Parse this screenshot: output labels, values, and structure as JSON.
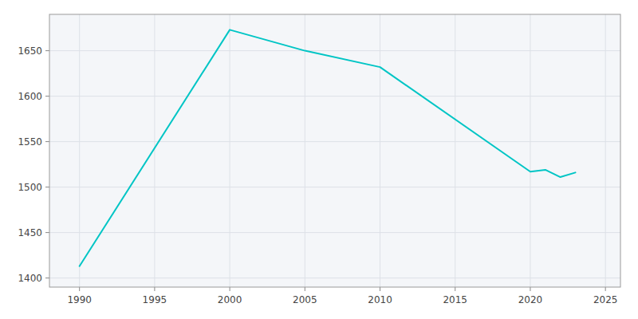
{
  "chart_data": {
    "type": "line",
    "x": [
      1990,
      2000,
      2005,
      2010,
      2020,
      2021,
      2022,
      2023
    ],
    "values": [
      1413,
      1673,
      1650,
      1632,
      1517,
      1519,
      1511,
      1516
    ],
    "color": "#00c5c5",
    "xlim": [
      1988,
      2026
    ],
    "ylim": [
      1390,
      1690
    ],
    "xticks": [
      1990,
      1995,
      2000,
      2005,
      2010,
      2015,
      2020,
      2025
    ],
    "yticks": [
      1400,
      1450,
      1500,
      1550,
      1600,
      1650
    ],
    "grid": true
  }
}
